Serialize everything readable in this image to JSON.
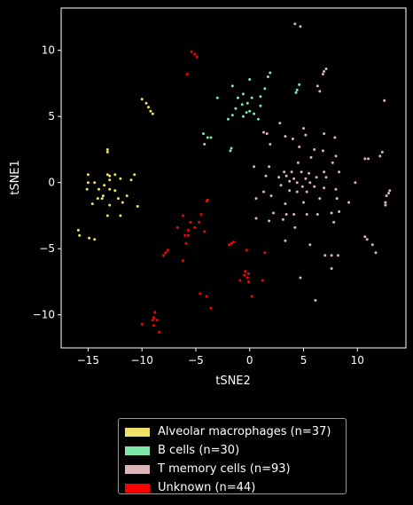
{
  "chart_data": {
    "type": "scatter",
    "title": "",
    "xlabel": "tSNE2",
    "ylabel": "tSNE1",
    "xlim": [
      -17.5,
      14.5
    ],
    "ylim": [
      -12.5,
      13.2
    ],
    "xticks": [
      -15,
      -10,
      -5,
      0,
      5,
      10
    ],
    "yticks": [
      -10,
      -5,
      0,
      5,
      10
    ],
    "grid": false,
    "legend_position": "below",
    "series": [
      {
        "name": "Alveolar macrophages (n=37)",
        "color": "#f0e068",
        "points": [
          [
            -10.0,
            6.3
          ],
          [
            -9.6,
            6.0
          ],
          [
            -9.4,
            5.7
          ],
          [
            -9.2,
            5.4
          ],
          [
            -9.0,
            5.2
          ],
          [
            -13.2,
            2.5
          ],
          [
            -13.2,
            2.3
          ],
          [
            -15.0,
            0.6
          ],
          [
            -13.2,
            0.6
          ],
          [
            -13.0,
            0.5
          ],
          [
            -12.5,
            0.6
          ],
          [
            -15.0,
            0.0
          ],
          [
            -14.4,
            0.0
          ],
          [
            -13.0,
            0.2
          ],
          [
            -12.0,
            0.3
          ],
          [
            -10.7,
            0.6
          ],
          [
            -11.0,
            0.2
          ],
          [
            -13.5,
            -0.2
          ],
          [
            -15.1,
            -0.5
          ],
          [
            -14.0,
            -0.5
          ],
          [
            -13.0,
            -0.5
          ],
          [
            -12.5,
            -0.6
          ],
          [
            -13.6,
            -1.0
          ],
          [
            -11.4,
            -1.0
          ],
          [
            -14.1,
            -1.2
          ],
          [
            -13.7,
            -1.2
          ],
          [
            -12.2,
            -1.2
          ],
          [
            -14.6,
            -1.6
          ],
          [
            -11.8,
            -1.5
          ],
          [
            -13.0,
            -1.7
          ],
          [
            -10.4,
            -1.8
          ],
          [
            -13.2,
            -2.5
          ],
          [
            -12.0,
            -2.5
          ],
          [
            -15.9,
            -3.6
          ],
          [
            -15.8,
            -4.0
          ],
          [
            -14.9,
            -4.2
          ],
          [
            -14.4,
            -4.3
          ]
        ]
      },
      {
        "name": "B cells (n=30)",
        "color": "#7ee8a8",
        "points": [
          [
            1.9,
            8.3
          ],
          [
            1.7,
            8.0
          ],
          [
            0.0,
            7.8
          ],
          [
            -1.6,
            7.3
          ],
          [
            1.4,
            7.1
          ],
          [
            4.6,
            7.4
          ],
          [
            4.4,
            7.0
          ],
          [
            4.3,
            6.8
          ],
          [
            -0.6,
            6.7
          ],
          [
            -3.0,
            6.4
          ],
          [
            -1.1,
            6.4
          ],
          [
            0.2,
            6.4
          ],
          [
            1.0,
            6.5
          ],
          [
            -0.2,
            6.0
          ],
          [
            -0.7,
            5.9
          ],
          [
            1.0,
            5.8
          ],
          [
            -1.3,
            5.6
          ],
          [
            0.0,
            5.4
          ],
          [
            -0.3,
            5.3
          ],
          [
            0.4,
            5.2
          ],
          [
            -0.6,
            5.0
          ],
          [
            -1.6,
            5.1
          ],
          [
            -2.0,
            4.8
          ],
          [
            0.8,
            4.8
          ],
          [
            -4.3,
            3.7
          ],
          [
            -3.9,
            3.4
          ],
          [
            -3.6,
            3.4
          ],
          [
            -4.2,
            2.9
          ],
          [
            -1.7,
            2.6
          ],
          [
            -1.8,
            2.4
          ]
        ]
      },
      {
        "name": "T memory cells (n=93)",
        "color": "#dcb4b8",
        "points": [
          [
            4.2,
            12.0
          ],
          [
            4.7,
            11.8
          ],
          [
            7.1,
            8.6
          ],
          [
            6.9,
            8.4
          ],
          [
            6.8,
            8.2
          ],
          [
            6.3,
            7.3
          ],
          [
            6.5,
            6.9
          ],
          [
            12.5,
            6.2
          ],
          [
            2.8,
            4.5
          ],
          [
            5.0,
            4.1
          ],
          [
            1.3,
            3.8
          ],
          [
            1.6,
            3.7
          ],
          [
            3.3,
            3.5
          ],
          [
            6.9,
            3.7
          ],
          [
            4.0,
            3.3
          ],
          [
            5.2,
            3.6
          ],
          [
            7.9,
            3.4
          ],
          [
            1.9,
            2.9
          ],
          [
            4.6,
            2.7
          ],
          [
            6.0,
            2.5
          ],
          [
            6.8,
            2.4
          ],
          [
            8.0,
            2.0
          ],
          [
            7.7,
            1.5
          ],
          [
            5.7,
            1.9
          ],
          [
            12.3,
            2.3
          ],
          [
            12.1,
            2.0
          ],
          [
            10.7,
            1.8
          ],
          [
            11.0,
            1.8
          ],
          [
            0.4,
            1.2
          ],
          [
            1.8,
            1.2
          ],
          [
            4.5,
            1.5
          ],
          [
            3.2,
            0.8
          ],
          [
            3.9,
            0.8
          ],
          [
            4.8,
            0.8
          ],
          [
            5.5,
            0.7
          ],
          [
            6.9,
            0.8
          ],
          [
            8.3,
            0.8
          ],
          [
            1.5,
            0.5
          ],
          [
            2.7,
            0.4
          ],
          [
            3.4,
            0.5
          ],
          [
            4.1,
            0.3
          ],
          [
            5.2,
            0.3
          ],
          [
            6.2,
            0.4
          ],
          [
            7.1,
            0.4
          ],
          [
            3.7,
            0.1
          ],
          [
            4.4,
            0.0
          ],
          [
            5.6,
            0.0
          ],
          [
            9.8,
            0.0
          ],
          [
            2.9,
            -0.2
          ],
          [
            4.9,
            -0.3
          ],
          [
            6.0,
            -0.3
          ],
          [
            6.9,
            -0.4
          ],
          [
            8.0,
            -0.5
          ],
          [
            1.3,
            -0.7
          ],
          [
            3.7,
            -0.6
          ],
          [
            4.4,
            -0.7
          ],
          [
            5.3,
            -0.7
          ],
          [
            13.0,
            -0.6
          ],
          [
            12.9,
            -0.8
          ],
          [
            12.7,
            -1.0
          ],
          [
            0.6,
            -1.2
          ],
          [
            2.0,
            -1.0
          ],
          [
            6.5,
            -1.2
          ],
          [
            8.1,
            -1.2
          ],
          [
            12.6,
            -1.5
          ],
          [
            12.6,
            -1.7
          ],
          [
            3.3,
            -1.6
          ],
          [
            5.0,
            -1.5
          ],
          [
            9.2,
            -1.5
          ],
          [
            2.2,
            -2.3
          ],
          [
            3.4,
            -2.4
          ],
          [
            4.1,
            -2.4
          ],
          [
            5.3,
            -2.4
          ],
          [
            6.3,
            -2.4
          ],
          [
            7.6,
            -2.3
          ],
          [
            8.3,
            -2.2
          ],
          [
            0.6,
            -2.7
          ],
          [
            1.8,
            -2.9
          ],
          [
            3.1,
            -2.8
          ],
          [
            7.8,
            -3.0
          ],
          [
            4.2,
            -3.4
          ],
          [
            10.7,
            -4.1
          ],
          [
            10.9,
            -4.3
          ],
          [
            3.3,
            -4.4
          ],
          [
            5.6,
            -4.7
          ],
          [
            11.4,
            -4.7
          ],
          [
            11.7,
            -5.3
          ],
          [
            7.0,
            -5.5
          ],
          [
            7.6,
            -5.5
          ],
          [
            8.2,
            -5.5
          ],
          [
            7.6,
            -6.5
          ],
          [
            4.7,
            -7.2
          ],
          [
            6.1,
            -8.9
          ]
        ]
      },
      {
        "name": "Unknown (n=44)",
        "color": "#ff0000",
        "points": [
          [
            -5.4,
            9.9
          ],
          [
            -5.1,
            9.7
          ],
          [
            -4.9,
            9.5
          ],
          [
            -5.8,
            8.2
          ],
          [
            -3.9,
            -1.3
          ],
          [
            -4.0,
            -1.4
          ],
          [
            -6.2,
            -2.5
          ],
          [
            -4.5,
            -2.4
          ],
          [
            -5.5,
            -3.0
          ],
          [
            -4.7,
            -3.0
          ],
          [
            -5.1,
            -3.4
          ],
          [
            -6.7,
            -3.4
          ],
          [
            -5.7,
            -3.6
          ],
          [
            -4.2,
            -3.7
          ],
          [
            -6.0,
            -4.0
          ],
          [
            -5.7,
            -4.0
          ],
          [
            -1.5,
            -4.5
          ],
          [
            -1.7,
            -4.6
          ],
          [
            -1.9,
            -4.7
          ],
          [
            -0.3,
            -5.1
          ],
          [
            1.4,
            -5.3
          ],
          [
            -5.9,
            -4.6
          ],
          [
            -7.6,
            -5.1
          ],
          [
            -7.8,
            -5.3
          ],
          [
            -8.0,
            -5.5
          ],
          [
            -6.2,
            -5.9
          ],
          [
            -0.4,
            -6.7
          ],
          [
            -0.1,
            -6.9
          ],
          [
            -0.5,
            -7.0
          ],
          [
            -0.2,
            -7.2
          ],
          [
            -0.9,
            -7.4
          ],
          [
            -0.1,
            -7.5
          ],
          [
            1.2,
            -7.4
          ],
          [
            -4.6,
            -8.4
          ],
          [
            -4.0,
            -8.6
          ],
          [
            0.2,
            -8.6
          ],
          [
            -3.6,
            -9.5
          ],
          [
            -8.8,
            -9.8
          ],
          [
            -8.9,
            -10.2
          ],
          [
            -9.0,
            -10.4
          ],
          [
            -8.6,
            -10.4
          ],
          [
            -10.0,
            -10.7
          ],
          [
            -8.9,
            -10.8
          ],
          [
            -8.4,
            -11.3
          ]
        ]
      }
    ]
  }
}
